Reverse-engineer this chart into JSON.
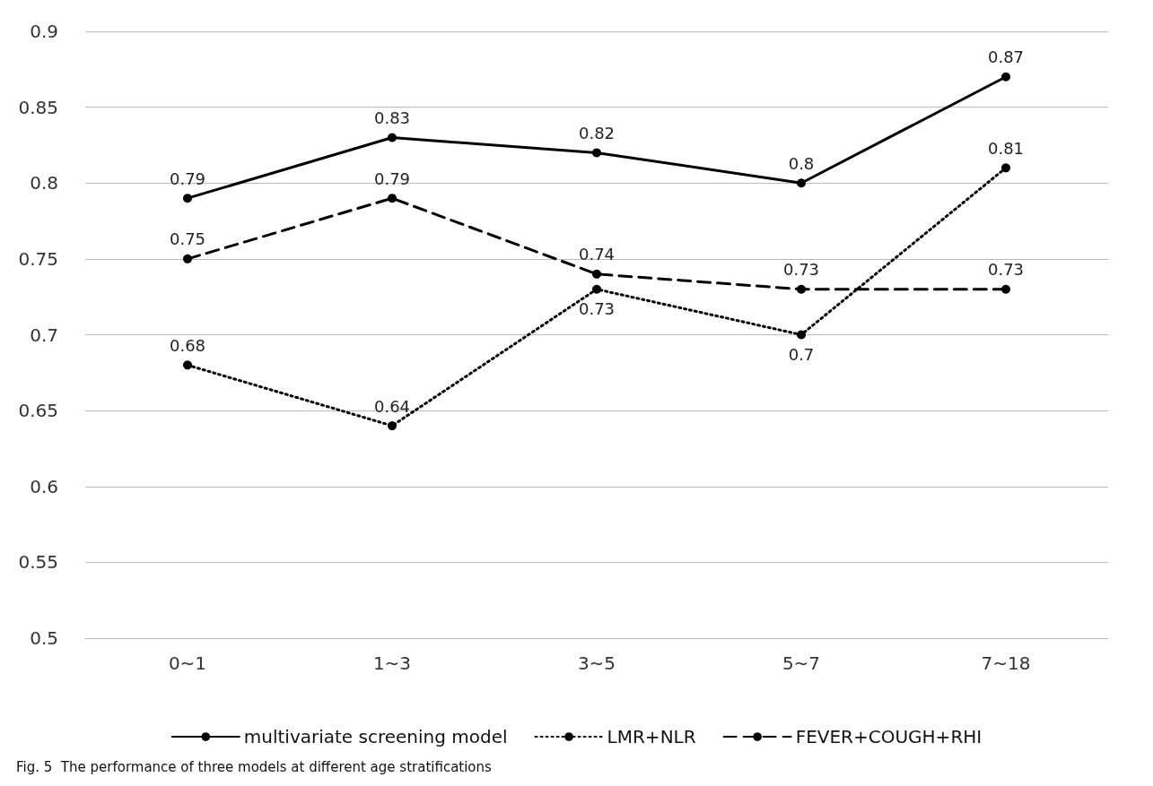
{
  "chart_data": {
    "type": "line",
    "categories": [
      "0~1",
      "1~3",
      "3~5",
      "5~7",
      "7~18"
    ],
    "series": [
      {
        "name": "multivariate screening model",
        "color": "#000000",
        "line_style": "solid",
        "values": [
          0.79,
          0.83,
          0.82,
          0.8,
          0.87
        ]
      },
      {
        "name": "LMR+NLR",
        "color": "#000000",
        "line_style": "dotted",
        "values": [
          0.68,
          0.64,
          0.73,
          0.7,
          0.81
        ]
      },
      {
        "name": "FEVER+COUGH+RHI",
        "color": "#000000",
        "line_style": "dashed",
        "values": [
          0.75,
          0.79,
          0.74,
          0.73,
          0.73
        ]
      }
    ],
    "ylim": [
      0.5,
      0.9
    ],
    "yticks": [
      0.5,
      0.55,
      0.6,
      0.65,
      0.7,
      0.75,
      0.8,
      0.85,
      0.9
    ],
    "grid": "y",
    "legend": "bottom",
    "marker": "circle",
    "data_labels": true,
    "annotations": [
      "Fig. 5  The performance of three models at different age stratifications"
    ]
  }
}
